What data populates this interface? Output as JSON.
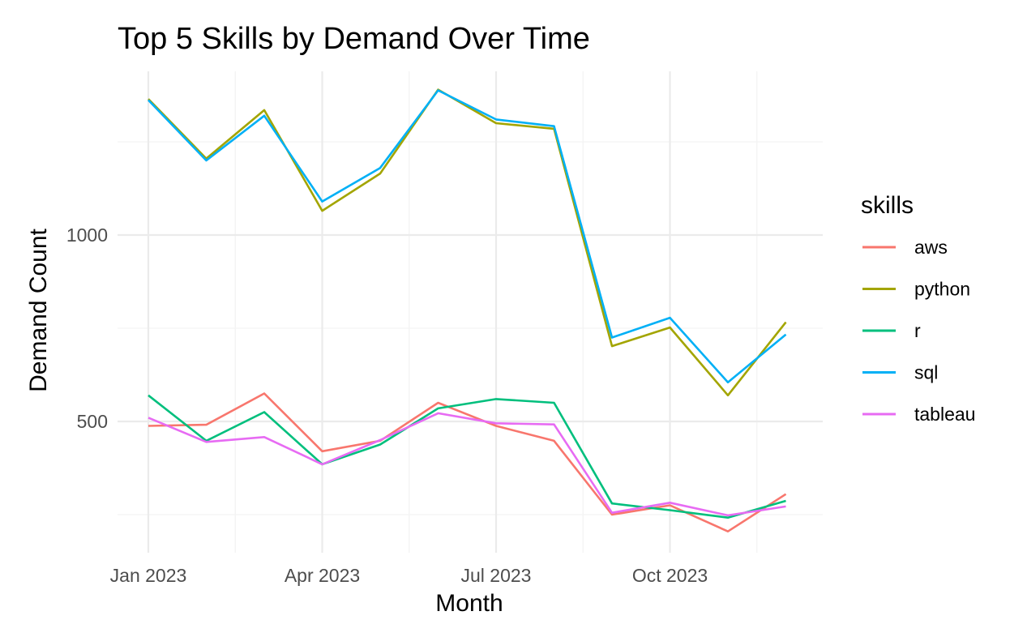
{
  "chart_data": {
    "type": "line",
    "title": "Top 5 Skills by Demand Over Time",
    "xlabel": "Month",
    "ylabel": "Demand Count",
    "x": [
      "2023-01",
      "2023-02",
      "2023-03",
      "2023-04",
      "2023-05",
      "2023-06",
      "2023-07",
      "2023-08",
      "2023-09",
      "2023-10",
      "2023-11",
      "2023-12"
    ],
    "x_ticks": [
      {
        "value": "2023-01",
        "label": "Jan 2023"
      },
      {
        "value": "2023-04",
        "label": "Apr 2023"
      },
      {
        "value": "2023-07",
        "label": "Jul 2023"
      },
      {
        "value": "2023-10",
        "label": "Oct 2023"
      }
    ],
    "y_ticks": [
      {
        "value": 500,
        "label": "500"
      },
      {
        "value": 1000,
        "label": "1000"
      }
    ],
    "ylim": [
      150,
      1560
    ],
    "grid": true,
    "legend": {
      "title": "skills",
      "placement": "right"
    },
    "series": [
      {
        "name": "aws",
        "color": "#F8766D",
        "values": [
          488,
          491,
          575,
          420,
          448,
          550,
          488,
          448,
          250,
          275,
          205,
          305
        ]
      },
      {
        "name": "python",
        "color": "#A3A500",
        "values": [
          1365,
          1205,
          1335,
          1065,
          1165,
          1390,
          1300,
          1285,
          702,
          752,
          570,
          766
        ]
      },
      {
        "name": "r",
        "color": "#00BF7D",
        "values": [
          570,
          448,
          525,
          385,
          438,
          535,
          560,
          550,
          280,
          262,
          242,
          287
        ]
      },
      {
        "name": "sql",
        "color": "#00B0F6",
        "values": [
          1362,
          1200,
          1320,
          1090,
          1180,
          1388,
          1310,
          1292,
          725,
          778,
          605,
          733
        ]
      },
      {
        "name": "tableau",
        "color": "#E76BF3",
        "values": [
          510,
          445,
          458,
          385,
          450,
          522,
          495,
          492,
          255,
          282,
          248,
          272
        ]
      }
    ]
  }
}
